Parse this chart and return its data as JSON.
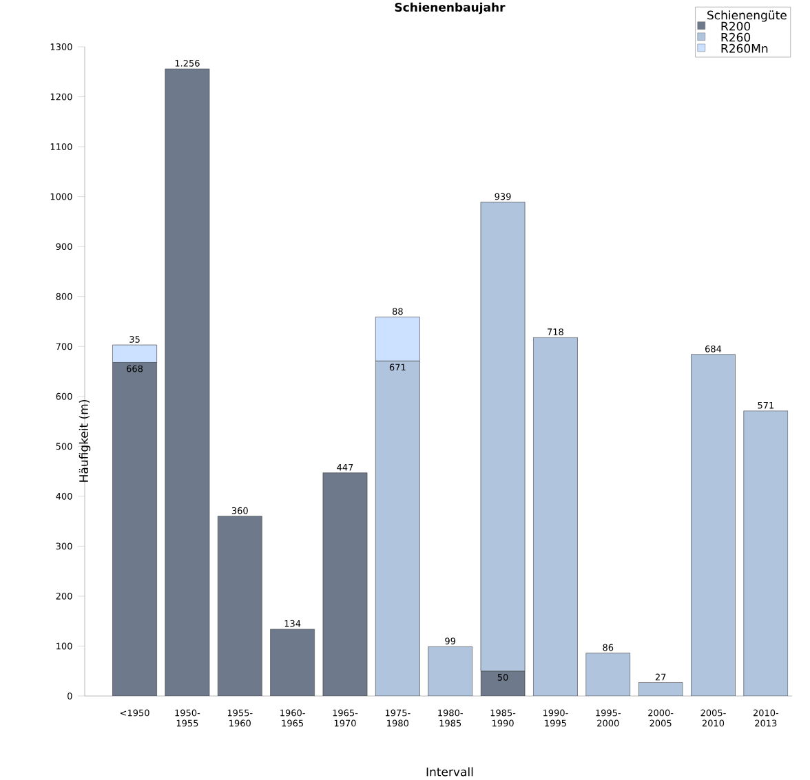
{
  "chart_data": {
    "type": "bar",
    "stacked": true,
    "title": "Schienenbaujahr",
    "xlabel": "Intervall",
    "ylabel": "Häufigkeit (m)",
    "legend_title": "Schienengüte",
    "legend": "top right",
    "categories": [
      "<1950",
      "1950-1955",
      "1955-1960",
      "1960-1965",
      "1965-1970",
      "1975-1980",
      "1980-1985",
      "1985-1990",
      "1990-1995",
      "1995-2000",
      "2000-2005",
      "2005-2010",
      "2010-2013"
    ],
    "ylim": [
      0,
      1300
    ],
    "yticks": [
      0,
      100,
      200,
      300,
      400,
      500,
      600,
      700,
      800,
      900,
      1000,
      1100,
      1200,
      1300
    ],
    "series": [
      {
        "name": "R200",
        "color": "#6e7a8b",
        "values": [
          668,
          1256,
          360,
          134,
          447,
          null,
          null,
          50,
          null,
          null,
          null,
          null,
          null
        ],
        "value_labels": [
          "668",
          "1.256",
          "360",
          "134",
          "447",
          null,
          null,
          "50",
          null,
          null,
          null,
          null,
          null
        ]
      },
      {
        "name": "R260",
        "color": "#b0c4de",
        "values": [
          null,
          null,
          null,
          null,
          null,
          671,
          99,
          939,
          718,
          86,
          27,
          684,
          571
        ],
        "value_labels": [
          null,
          null,
          null,
          null,
          null,
          "671",
          "99",
          "939",
          "718",
          "86",
          "27",
          "684",
          "571"
        ]
      },
      {
        "name": "R260Mn",
        "color": "#cce0ff",
        "values": [
          35,
          null,
          null,
          null,
          null,
          88,
          null,
          null,
          null,
          null,
          null,
          null,
          null
        ],
        "value_labels": [
          "35",
          null,
          null,
          null,
          null,
          "88",
          null,
          null,
          null,
          null,
          null,
          null,
          null
        ]
      }
    ]
  }
}
